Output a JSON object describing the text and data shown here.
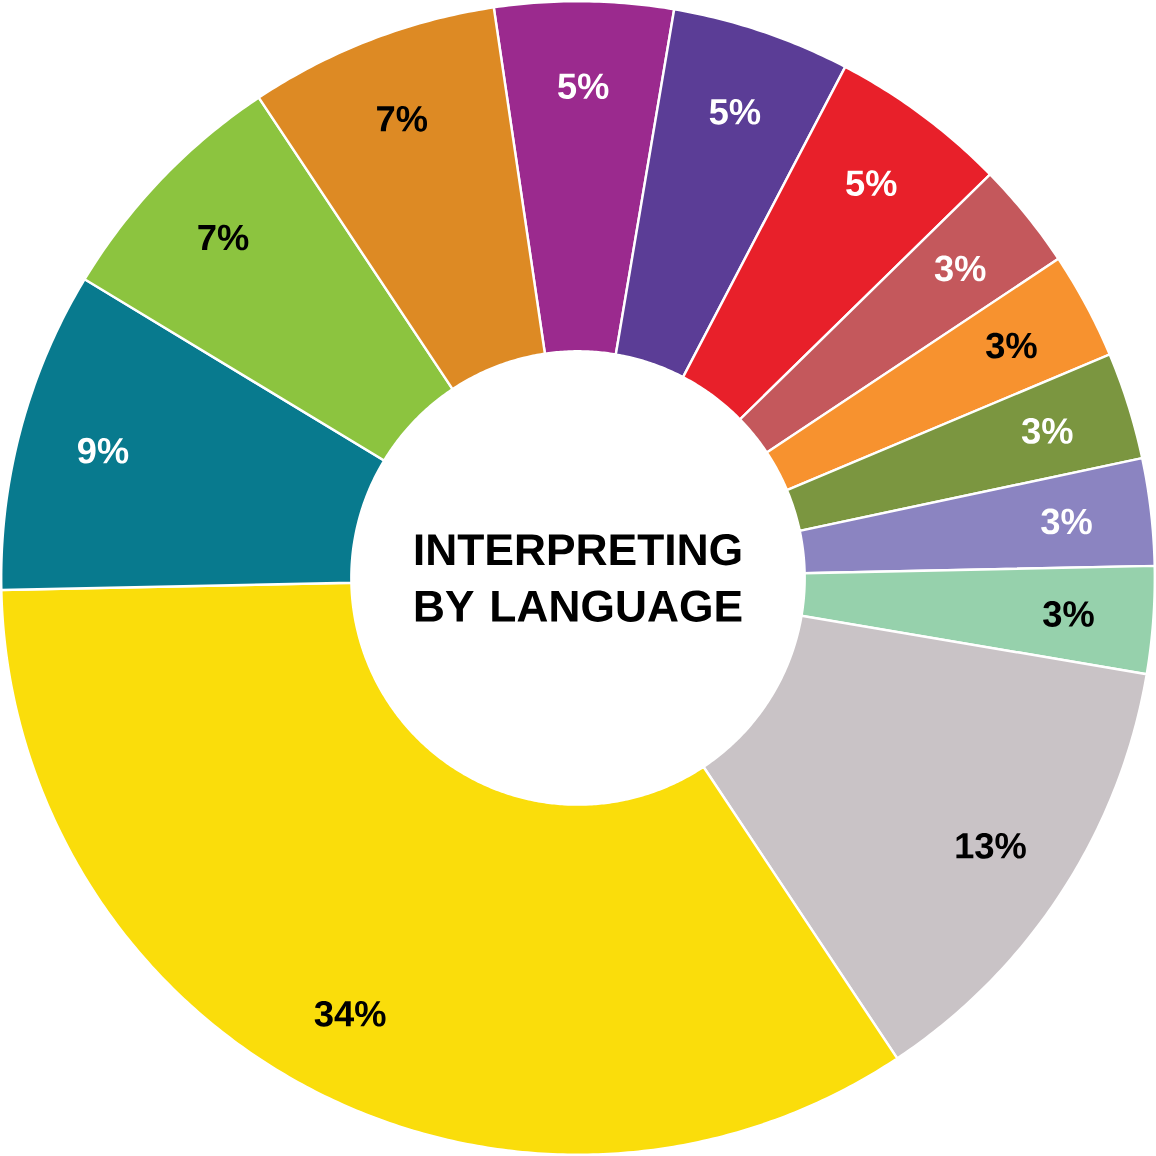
{
  "chart_data": {
    "type": "donut",
    "title": "INTERPRETING BY LANGUAGE",
    "categories": [
      null,
      null,
      null,
      null,
      null,
      null,
      null,
      null,
      null,
      null,
      null,
      null,
      null
    ],
    "values": [
      5,
      5,
      5,
      3,
      3,
      3,
      3,
      3,
      13,
      34,
      9,
      7,
      7
    ],
    "value_labels": [
      "5%",
      "5%",
      "5%",
      "3%",
      "3%",
      "3%",
      "3%",
      "3%",
      "13%",
      "34%",
      "9%",
      "7%",
      "7%"
    ],
    "colors": [
      "#9b2a8e",
      "#5b3d96",
      "#e8202a",
      "#c4585c",
      "#f7922f",
      "#7b9640",
      "#8b84c1",
      "#96d1ac",
      "#c9c3c6",
      "#fadd0b",
      "#087a8e",
      "#8cc43f",
      "#dd8a24"
    ]
  }
}
